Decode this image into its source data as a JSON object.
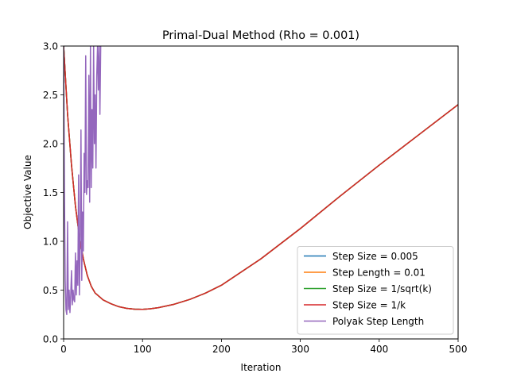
{
  "chart_data": {
    "type": "line",
    "title": "Primal-Dual Method (Rho = 0.001)",
    "xlabel": "Iteration",
    "ylabel": "Objective Value",
    "xlim": [
      0,
      500
    ],
    "ylim": [
      0.0,
      3.0
    ],
    "xticks": [
      0,
      100,
      200,
      300,
      400,
      500
    ],
    "xtick_labels": [
      "0",
      "100",
      "200",
      "300",
      "400",
      "500"
    ],
    "yticks": [
      0.0,
      0.5,
      1.0,
      1.5,
      2.0,
      2.5,
      3.0
    ],
    "ytick_labels": [
      "0.0",
      "0.5",
      "1.0",
      "1.5",
      "2.0",
      "2.5",
      "3.0"
    ],
    "grid": false,
    "legend_position": "lower-right",
    "series": [
      {
        "name": "Step Size = 0.005",
        "color": "#1f77b4",
        "x": [
          0,
          5,
          10,
          15,
          20,
          25,
          30,
          35,
          40,
          50,
          60,
          70,
          80,
          90,
          100,
          110,
          120,
          140,
          160,
          180,
          200,
          250,
          300,
          350,
          400,
          450,
          500
        ],
        "y": [
          3.0,
          2.3,
          1.78,
          1.36,
          1.05,
          0.82,
          0.65,
          0.54,
          0.47,
          0.4,
          0.36,
          0.33,
          0.313,
          0.305,
          0.303,
          0.309,
          0.32,
          0.355,
          0.405,
          0.47,
          0.55,
          0.82,
          1.13,
          1.46,
          1.78,
          2.09,
          2.4
        ]
      },
      {
        "name": "Step Length = 0.01",
        "color": "#ff7f0e",
        "x": [
          0,
          5,
          10,
          15,
          20,
          25,
          30,
          35,
          40,
          50,
          60,
          70,
          80,
          90,
          100,
          110,
          120,
          140,
          160,
          180,
          200,
          250,
          300,
          350,
          400,
          450,
          500
        ],
        "y": [
          3.0,
          2.3,
          1.78,
          1.36,
          1.05,
          0.82,
          0.65,
          0.54,
          0.47,
          0.4,
          0.36,
          0.33,
          0.313,
          0.305,
          0.303,
          0.309,
          0.32,
          0.355,
          0.405,
          0.47,
          0.55,
          0.82,
          1.13,
          1.46,
          1.78,
          2.09,
          2.4
        ]
      },
      {
        "name": "Step Size = 1/sqrt(k)",
        "color": "#2ca02c",
        "x": [
          0,
          5,
          10,
          15,
          20,
          25,
          30,
          35,
          40,
          50,
          60,
          70,
          80,
          90,
          100,
          110,
          120,
          140,
          160,
          180,
          200,
          250,
          300,
          350,
          400,
          450,
          500
        ],
        "y": [
          3.0,
          2.3,
          1.78,
          1.36,
          1.05,
          0.82,
          0.65,
          0.54,
          0.47,
          0.4,
          0.36,
          0.33,
          0.313,
          0.305,
          0.303,
          0.309,
          0.32,
          0.355,
          0.405,
          0.47,
          0.55,
          0.82,
          1.13,
          1.46,
          1.78,
          2.09,
          2.4
        ]
      },
      {
        "name": "Step Size = 1/k",
        "color": "#d62728",
        "x": [
          0,
          5,
          10,
          15,
          20,
          25,
          30,
          35,
          40,
          50,
          60,
          70,
          80,
          90,
          100,
          110,
          120,
          140,
          160,
          180,
          200,
          250,
          300,
          350,
          400,
          450,
          500
        ],
        "y": [
          3.0,
          2.3,
          1.78,
          1.36,
          1.05,
          0.82,
          0.65,
          0.54,
          0.47,
          0.4,
          0.36,
          0.33,
          0.313,
          0.305,
          0.303,
          0.309,
          0.32,
          0.355,
          0.405,
          0.47,
          0.55,
          0.82,
          1.13,
          1.46,
          1.78,
          2.09,
          2.4
        ]
      },
      {
        "name": "Polyak Step Length",
        "color": "#9467bd",
        "x": [
          0,
          1,
          2,
          3,
          4,
          5,
          6,
          7,
          8,
          9,
          10,
          11,
          12,
          13,
          14,
          15,
          16,
          17,
          18,
          19,
          20,
          21,
          22,
          23,
          24,
          25,
          26,
          27,
          28,
          29,
          30,
          31,
          32,
          33,
          34,
          35,
          36,
          37,
          38,
          39,
          40,
          41,
          42,
          43,
          44,
          45,
          46,
          47
        ],
        "y": [
          3.0,
          1.5,
          0.6,
          0.3,
          0.25,
          1.2,
          0.3,
          0.5,
          0.27,
          0.45,
          0.7,
          0.35,
          0.5,
          0.4,
          0.38,
          0.88,
          0.45,
          0.8,
          0.55,
          1.68,
          0.45,
          1.0,
          2.14,
          0.6,
          1.3,
          0.9,
          1.9,
          1.5,
          2.9,
          1.48,
          1.62,
          1.55,
          2.7,
          1.4,
          3.0,
          1.55,
          2.35,
          1.75,
          3.0,
          2.0,
          2.5,
          1.75,
          2.7,
          3.0,
          2.55,
          3.0,
          2.3,
          3.0
        ]
      }
    ]
  }
}
